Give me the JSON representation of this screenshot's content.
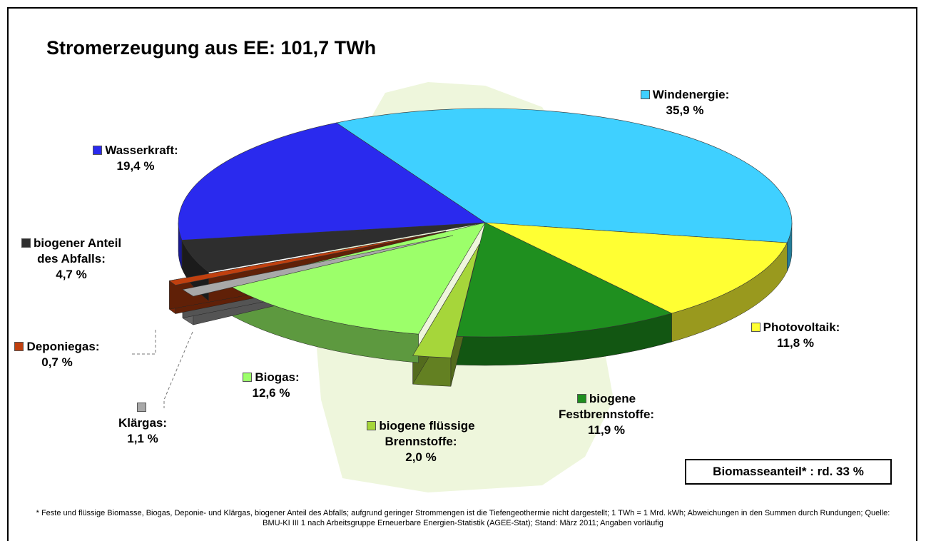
{
  "chart_data": {
    "type": "pie",
    "title": "Stromerzeugung aus EE: 101,7 TWh",
    "categories": [
      "Windenergie:",
      "Photovoltaik:",
      "biogene Festbrennstoffe:",
      "biogene flüssige Brennstoffe:",
      "Biogas:",
      "Klärgas:",
      "Deponiegas:",
      "biogener Anteil des Abfalls:",
      "Wasserkraft:"
    ],
    "values": [
      35.9,
      11.8,
      11.9,
      2.0,
      12.6,
      1.1,
      0.7,
      4.7,
      19.4
    ],
    "value_labels": [
      "35,9 %",
      "11,8 %",
      "11,9 %",
      "2,0 %",
      "12,6 %",
      "1,1 %",
      "0,7 %",
      "4,7 %",
      "19,4 %"
    ],
    "colors": [
      "#3fd0ff",
      "#ffff33",
      "#1f8f1f",
      "#a6d63a",
      "#9cff6a",
      "#a8a8a8",
      "#c0400f",
      "#2e2e2e",
      "#2a2aee"
    ],
    "annotation": "Biomasseanteil* : rd. 33 %",
    "footnote": "* Feste und flüssige Biomasse, Biogas, Deponie- und Klärgas, biogener Anteil des Abfalls; aufgrund geringer Strommengen ist die Tiefengeothermie nicht dargestellt; 1 TWh = 1 Mrd. kWh; Abweichungen in den Summen durch Rundungen; Quelle: BMU-KI III 1 nach Arbeitsgruppe Erneuerbare Energien-Statistik (AGEE-Stat); Stand: März 2011; Angaben vorläufig"
  }
}
